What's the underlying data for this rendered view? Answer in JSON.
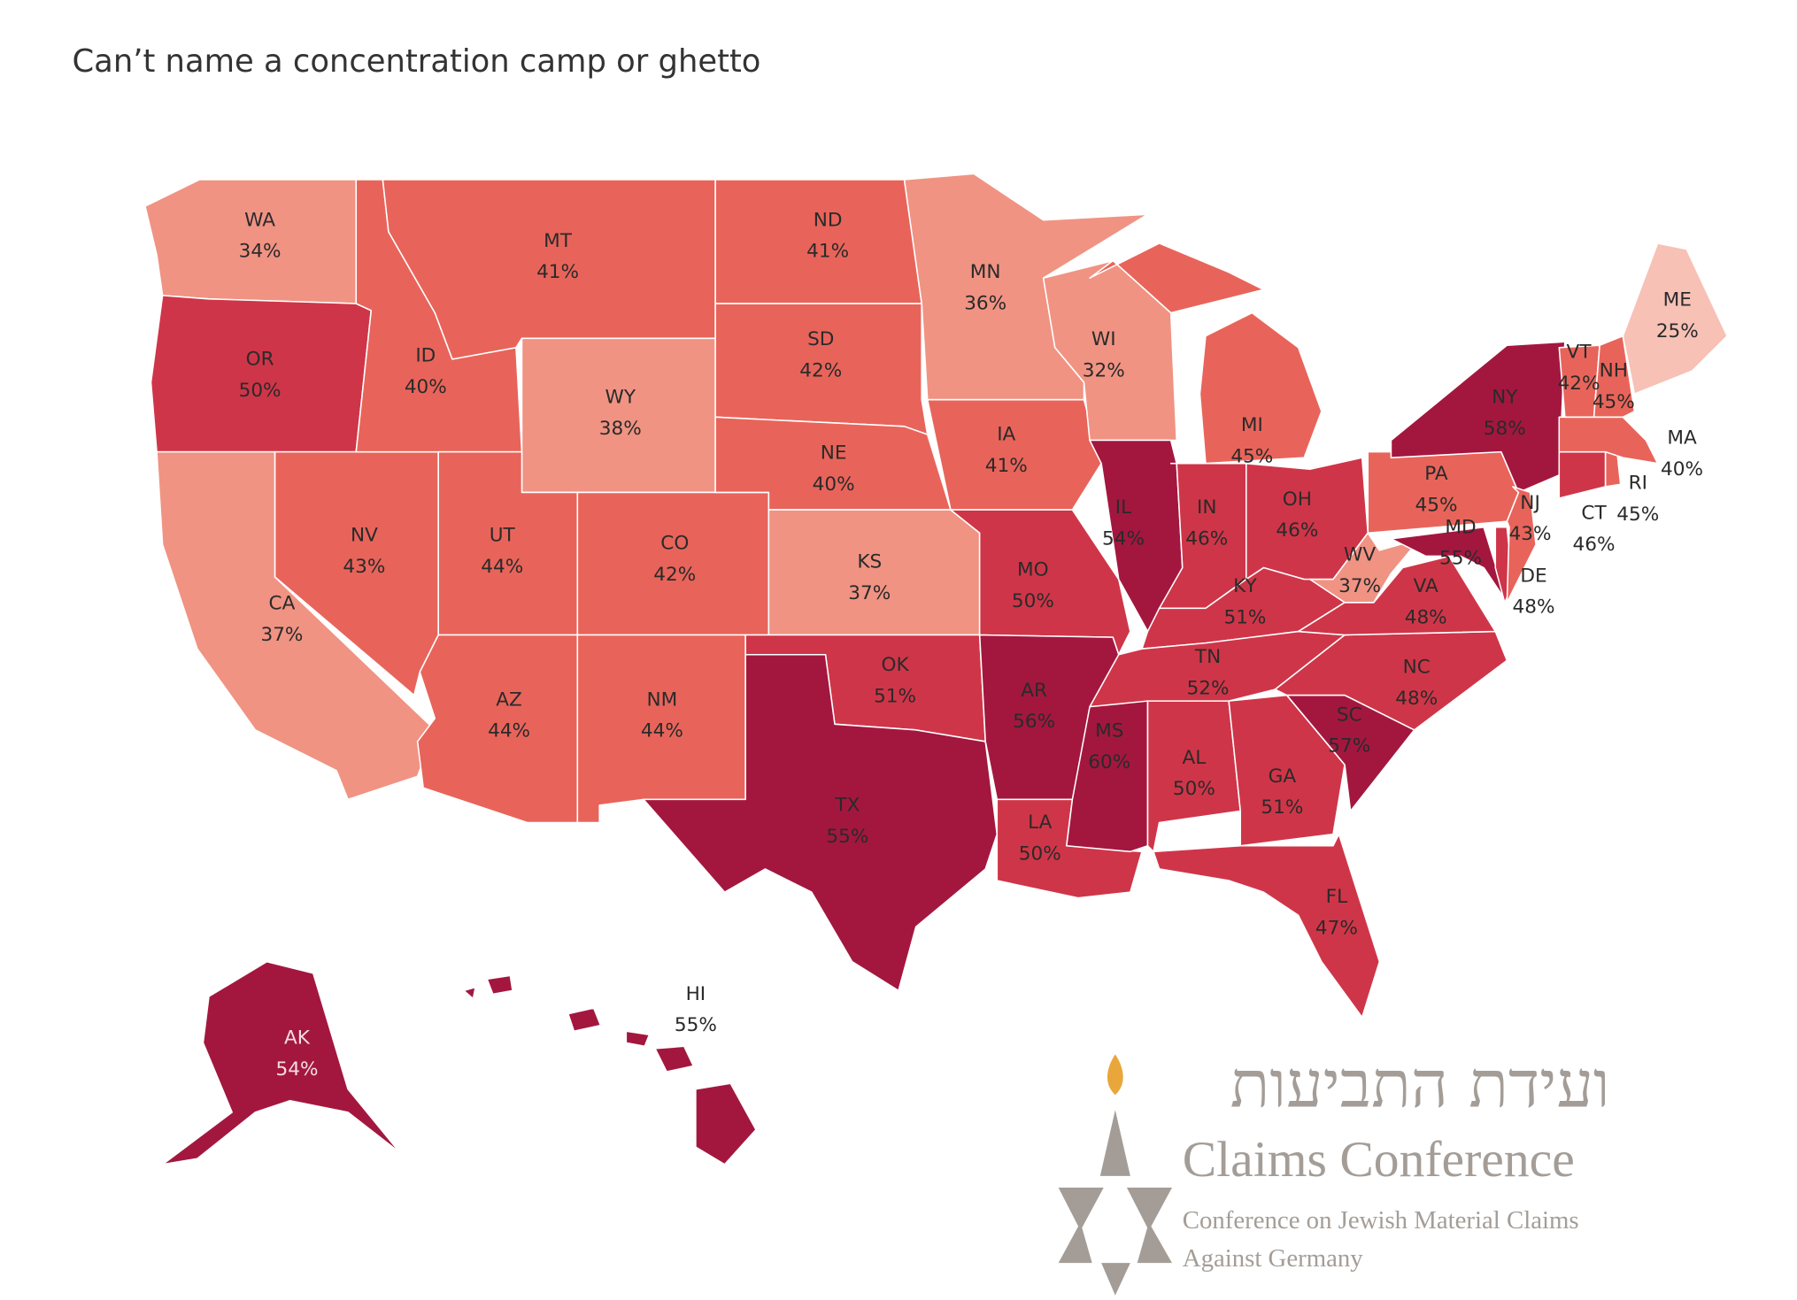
{
  "chart_data": {
    "type": "choropleth",
    "title": "Can’t name a concentration camp or ghetto",
    "categories": [
      "WA",
      "OR",
      "CA",
      "NV",
      "ID",
      "MT",
      "WY",
      "UT",
      "CO",
      "AZ",
      "NM",
      "ND",
      "SD",
      "NE",
      "KS",
      "OK",
      "TX",
      "MN",
      "IA",
      "MO",
      "AR",
      "LA",
      "WI",
      "IL",
      "MI",
      "IN",
      "OH",
      "KY",
      "TN",
      "MS",
      "AL",
      "GA",
      "FL",
      "SC",
      "NC",
      "VA",
      "WV",
      "PA",
      "NY",
      "MD",
      "DE",
      "NJ",
      "CT",
      "RI",
      "MA",
      "VT",
      "NH",
      "ME",
      "AK",
      "HI"
    ],
    "values": [
      34,
      50,
      37,
      43,
      40,
      41,
      38,
      44,
      42,
      44,
      44,
      41,
      42,
      40,
      37,
      51,
      55,
      36,
      41,
      50,
      56,
      50,
      32,
      54,
      45,
      46,
      46,
      51,
      52,
      60,
      50,
      51,
      47,
      57,
      48,
      48,
      37,
      45,
      58,
      55,
      48,
      43,
      46,
      45,
      40,
      42,
      45,
      25,
      54,
      55
    ],
    "value_labels": [
      "34%",
      "50%",
      "37%",
      "43%",
      "40%",
      "41%",
      "38%",
      "44%",
      "42%",
      "44%",
      "44%",
      "41%",
      "42%",
      "40%",
      "37%",
      "51%",
      "55%",
      "36%",
      "41%",
      "50%",
      "56%",
      "50%",
      "32%",
      "54%",
      "45%",
      "46%",
      "46%",
      "51%",
      "52%",
      "60%",
      "50%",
      "51%",
      "47%",
      "57%",
      "48%",
      "48%",
      "37%",
      "45%",
      "58%",
      "55%",
      "48%",
      "43%",
      "46%",
      "45%",
      "40%",
      "42%",
      "45%",
      "25%",
      "54%",
      "55%"
    ],
    "colors": [
      "#f09383",
      "#cf3548",
      "#f09383",
      "#e8645a",
      "#e8645a",
      "#e8645a",
      "#f09383",
      "#e8645a",
      "#e8645a",
      "#e8645a",
      "#e8645a",
      "#e8645a",
      "#e8645a",
      "#e8645a",
      "#f09383",
      "#cf3548",
      "#a3173f",
      "#f09383",
      "#e8645a",
      "#cf3548",
      "#a3173f",
      "#cf3548",
      "#f09383",
      "#a3173f",
      "#e8645a",
      "#cf3548",
      "#cf3548",
      "#cf3548",
      "#cf3548",
      "#a3173f",
      "#cf3548",
      "#cf3548",
      "#cf3548",
      "#a3173f",
      "#cf3548",
      "#cf3548",
      "#f09383",
      "#e8645a",
      "#a3173f",
      "#a3173f",
      "#cf3548",
      "#e8645a",
      "#cf3548",
      "#e8645a",
      "#e8645a",
      "#e8645a",
      "#e8645a",
      "#f7c1b5",
      "#a3173f",
      "#a3173f"
    ]
  },
  "logo": {
    "hebrew": "ועידת התביעות",
    "name": "Claims Conference",
    "subtitle_lines": [
      "Conference on Jewish Material Claims",
      "Against Germany"
    ]
  }
}
